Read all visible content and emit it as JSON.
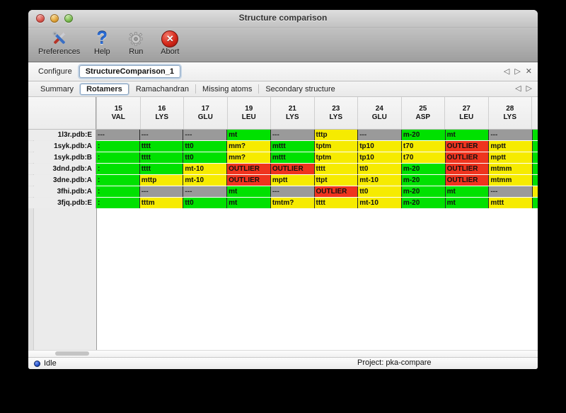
{
  "window": {
    "title": "Structure comparison"
  },
  "toolbar": {
    "items": [
      {
        "label": "Preferences",
        "icon": "tools-icon"
      },
      {
        "label": "Help",
        "icon": "question-mark-icon",
        "glyph": "?"
      },
      {
        "label": "Run",
        "icon": "gear-icon"
      },
      {
        "label": "Abort",
        "icon": "abort-icon",
        "glyph": "✕"
      }
    ]
  },
  "configure_bar": {
    "label": "Configure",
    "project_tab": "StructureComparison_1",
    "nav_prev": "◁",
    "nav_next": "▷",
    "nav_close": "✕"
  },
  "tabbar": {
    "tabs": [
      {
        "label": "Summary",
        "active": false
      },
      {
        "label": "Rotamers",
        "active": true
      },
      {
        "label": "Ramachandran",
        "active": false
      },
      {
        "label": "Missing atoms",
        "active": false
      },
      {
        "label": "Secondary structure",
        "active": false
      }
    ],
    "nav_prev": "◁",
    "nav_next": "▷"
  },
  "colors": {
    "green": "#00e100",
    "yellow": "#f6eb00",
    "red": "#ef341e",
    "gray": "#9a9a9a"
  },
  "table": {
    "columns": [
      {
        "number": "15",
        "residue": "VAL"
      },
      {
        "number": "16",
        "residue": "LYS"
      },
      {
        "number": "17",
        "residue": "GLU"
      },
      {
        "number": "19",
        "residue": "LEU"
      },
      {
        "number": "21",
        "residue": "LYS"
      },
      {
        "number": "23",
        "residue": "LYS"
      },
      {
        "number": "24",
        "residue": "GLU"
      },
      {
        "number": "25",
        "residue": "ASP"
      },
      {
        "number": "27",
        "residue": "LEU"
      },
      {
        "number": "28",
        "residue": "LYS"
      }
    ],
    "rows": [
      {
        "label": "1l3r.pdb:E",
        "cells": [
          {
            "text": "---",
            "color": "gray"
          },
          {
            "text": "---",
            "color": "gray"
          },
          {
            "text": "---",
            "color": "gray"
          },
          {
            "text": "mt",
            "color": "green"
          },
          {
            "text": "---",
            "color": "gray"
          },
          {
            "text": "tttp",
            "color": "yellow"
          },
          {
            "text": "---",
            "color": "gray"
          },
          {
            "text": "m-20",
            "color": "green"
          },
          {
            "text": "mt",
            "color": "green"
          },
          {
            "text": "---",
            "color": "gray"
          }
        ],
        "overflow_color": "green"
      },
      {
        "label": "1syk.pdb:A",
        "cells": [
          {
            "text": ":",
            "color": "green"
          },
          {
            "text": "tttt",
            "color": "green"
          },
          {
            "text": "tt0",
            "color": "green"
          },
          {
            "text": "mm?",
            "color": "yellow"
          },
          {
            "text": "mttt",
            "color": "green"
          },
          {
            "text": "tptm",
            "color": "yellow"
          },
          {
            "text": "tp10",
            "color": "yellow"
          },
          {
            "text": "t70",
            "color": "yellow"
          },
          {
            "text": "OUTLIER",
            "color": "red"
          },
          {
            "text": "mptt",
            "color": "yellow"
          }
        ],
        "overflow_color": "green"
      },
      {
        "label": "1syk.pdb:B",
        "cells": [
          {
            "text": ":",
            "color": "green"
          },
          {
            "text": "tttt",
            "color": "green"
          },
          {
            "text": "tt0",
            "color": "green"
          },
          {
            "text": "mm?",
            "color": "yellow"
          },
          {
            "text": "mttt",
            "color": "green"
          },
          {
            "text": "tptm",
            "color": "yellow"
          },
          {
            "text": "tp10",
            "color": "yellow"
          },
          {
            "text": "t70",
            "color": "yellow"
          },
          {
            "text": "OUTLIER",
            "color": "red"
          },
          {
            "text": "mptt",
            "color": "yellow"
          }
        ],
        "overflow_color": "green"
      },
      {
        "label": "3dnd.pdb:A",
        "cells": [
          {
            "text": ":",
            "color": "green"
          },
          {
            "text": "tttt",
            "color": "green"
          },
          {
            "text": "mt-10",
            "color": "yellow"
          },
          {
            "text": "OUTLIER",
            "color": "red"
          },
          {
            "text": "OUTLIER",
            "color": "red"
          },
          {
            "text": "tttt",
            "color": "yellow"
          },
          {
            "text": "tt0",
            "color": "yellow"
          },
          {
            "text": "m-20",
            "color": "green"
          },
          {
            "text": "OUTLIER",
            "color": "red"
          },
          {
            "text": "mtmm",
            "color": "yellow"
          }
        ],
        "overflow_color": "green"
      },
      {
        "label": "3dne.pdb:A",
        "cells": [
          {
            "text": ":",
            "color": "green"
          },
          {
            "text": "mttp",
            "color": "yellow"
          },
          {
            "text": "mt-10",
            "color": "yellow"
          },
          {
            "text": "OUTLIER",
            "color": "red"
          },
          {
            "text": "mptt",
            "color": "yellow"
          },
          {
            "text": "ttpt",
            "color": "yellow"
          },
          {
            "text": "mt-10",
            "color": "yellow"
          },
          {
            "text": "m-20",
            "color": "green"
          },
          {
            "text": "OUTLIER",
            "color": "red"
          },
          {
            "text": "mtmm",
            "color": "yellow"
          }
        ],
        "overflow_color": "green"
      },
      {
        "label": "3fhi.pdb:A",
        "cells": [
          {
            "text": ":",
            "color": "green"
          },
          {
            "text": "---",
            "color": "gray"
          },
          {
            "text": "---",
            "color": "gray"
          },
          {
            "text": "mt",
            "color": "green"
          },
          {
            "text": "---",
            "color": "gray"
          },
          {
            "text": "OUTLIER",
            "color": "red"
          },
          {
            "text": "tt0",
            "color": "yellow"
          },
          {
            "text": "m-20",
            "color": "green"
          },
          {
            "text": "mt",
            "color": "green"
          },
          {
            "text": "---",
            "color": "gray"
          }
        ],
        "overflow_color": "yellow"
      },
      {
        "label": "3fjq.pdb:E",
        "cells": [
          {
            "text": ":",
            "color": "green"
          },
          {
            "text": "tttm",
            "color": "yellow"
          },
          {
            "text": "tt0",
            "color": "green"
          },
          {
            "text": "mt",
            "color": "green"
          },
          {
            "text": "tmtm?",
            "color": "yellow"
          },
          {
            "text": "tttt",
            "color": "yellow"
          },
          {
            "text": "mt-10",
            "color": "yellow"
          },
          {
            "text": "m-20",
            "color": "green"
          },
          {
            "text": "mt",
            "color": "green"
          },
          {
            "text": "mttt",
            "color": "yellow"
          }
        ],
        "overflow_color": "green"
      }
    ]
  },
  "status_bar": {
    "status": "Idle",
    "project": "Project: pka-compare"
  }
}
